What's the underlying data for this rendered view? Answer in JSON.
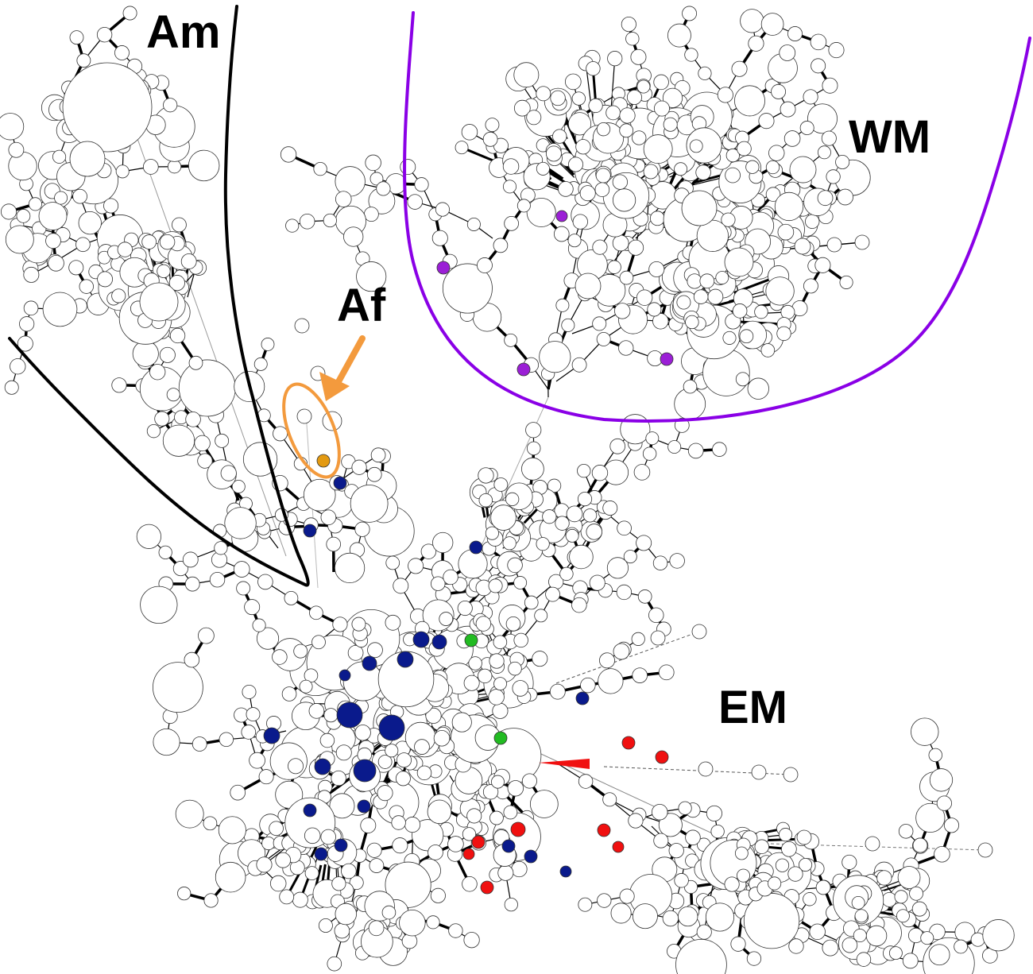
{
  "labels": {
    "am": "Am",
    "wm": "WM",
    "af": "Af",
    "em": "EM"
  },
  "colors": {
    "node_fill": "#ffffff",
    "node_stroke": "#333333",
    "edge": "#000000",
    "am_boundary": "#000000",
    "wm_boundary": "#8a00e6",
    "wm_nodes": "#9b1fd6",
    "af_marker": "#f39a3d",
    "af_node": "#e39a12",
    "navy_nodes": "#0a1a8c",
    "red_nodes": "#f01010",
    "green_nodes": "#22bb22"
  },
  "icons": {
    "af_pointer": "arrow-down-left-icon"
  }
}
